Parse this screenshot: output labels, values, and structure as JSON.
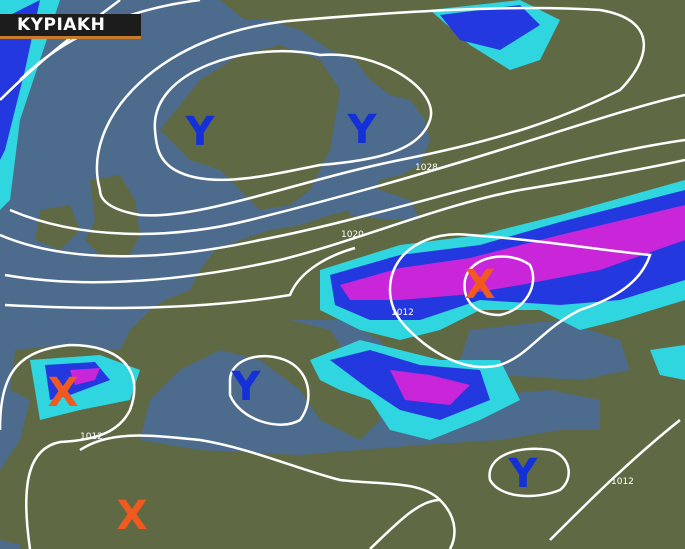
{
  "header": {
    "day_label": "ΚΥΡΙΑΚΗ"
  },
  "colors": {
    "sea": "#4d6b8c",
    "land": "#5f6a44",
    "high": "#1430d8",
    "low": "#f05a1e",
    "isobar": "#ffffff",
    "precip_light": "#2fd6e0",
    "precip_mid": "#2438e0",
    "precip_heavy": "#c826d8"
  },
  "pressure_centers": [
    {
      "type": "high",
      "letter": "Υ"
    },
    {
      "type": "high",
      "letter": "Υ"
    },
    {
      "type": "high",
      "letter": "Υ"
    },
    {
      "type": "high",
      "letter": "Υ"
    },
    {
      "type": "low",
      "letter": "Χ"
    },
    {
      "type": "low",
      "letter": "Χ"
    },
    {
      "type": "low",
      "letter": "Χ"
    }
  ],
  "isobar_labels": [
    "1028",
    "1020",
    "1012",
    "1012",
    "1012"
  ]
}
